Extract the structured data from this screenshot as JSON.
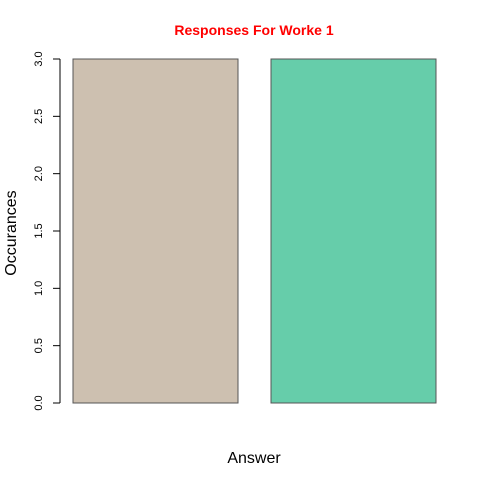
{
  "chart_data": {
    "type": "bar",
    "title": "Responses For Worke 1",
    "title_color": "#ff0000",
    "xlabel": "Answer",
    "ylabel": "Occurances",
    "categories": [
      "",
      ""
    ],
    "values": [
      3,
      3
    ],
    "bar_colors": [
      "#cdc0b0",
      "#66cdaa"
    ],
    "bar_border_color": "#555555",
    "ylim": [
      0,
      3
    ],
    "yticks": [
      "0.0",
      "0.5",
      "1.0",
      "1.5",
      "2.0",
      "2.5",
      "3.0"
    ],
    "ytick_values": [
      0,
      0.5,
      1,
      1.5,
      2,
      2.5,
      3
    ],
    "grid": false,
    "legend": "none"
  }
}
